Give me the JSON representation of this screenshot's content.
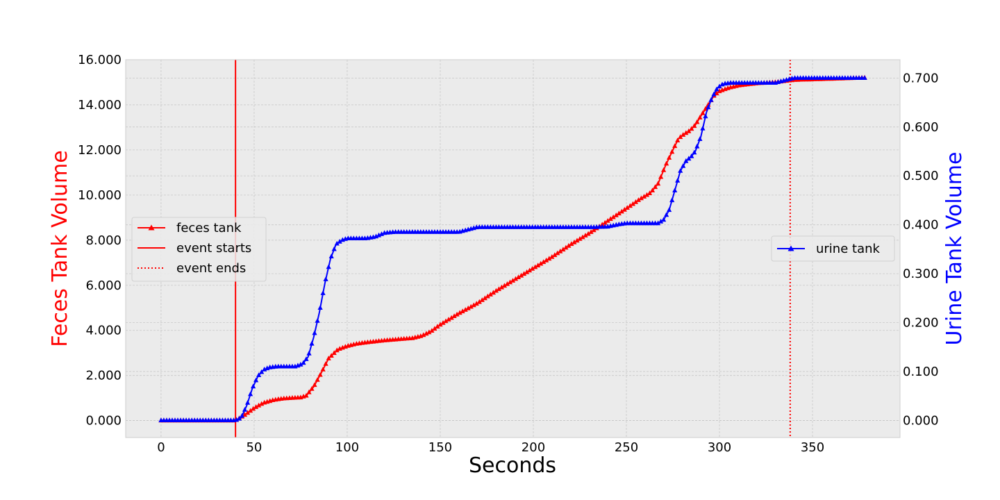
{
  "chart_data": {
    "type": "line",
    "xlabel": "Seconds",
    "y_left_label": "Feces Tank Volume",
    "y_right_label": "Urine Tank Volume",
    "xlim": [
      -19,
      397
    ],
    "y_left_lim": [
      -0.75,
      16.0
    ],
    "y_right_lim": [
      -0.035,
      0.7375
    ],
    "x_ticks": [
      0,
      50,
      100,
      150,
      200,
      250,
      300,
      350
    ],
    "x_tick_labels": [
      "0",
      "50",
      "100",
      "150",
      "200",
      "250",
      "300",
      "350"
    ],
    "y_left_ticks": [
      0,
      2,
      4,
      6,
      8,
      10,
      12,
      14,
      16
    ],
    "y_left_tick_labels": [
      "0.000",
      "2.000",
      "4.000",
      "6.000",
      "8.000",
      "10.000",
      "12.000",
      "14.000",
      "16.000"
    ],
    "y_right_ticks": [
      0,
      0.1,
      0.2,
      0.3,
      0.4,
      0.5,
      0.6,
      0.7
    ],
    "y_right_tick_labels": [
      "0.000",
      "0.100",
      "0.200",
      "0.300",
      "0.400",
      "0.500",
      "0.600",
      "0.700"
    ],
    "grid": true,
    "marker_step": 1.5,
    "series": [
      {
        "name": "feces tank",
        "axis": "left",
        "color": "#ff0000",
        "marker": "triangle",
        "x_end": 378,
        "points": [
          [
            0,
            0
          ],
          [
            40,
            0
          ],
          [
            45,
            0.25
          ],
          [
            50,
            0.55
          ],
          [
            55,
            0.78
          ],
          [
            60,
            0.9
          ],
          [
            65,
            0.97
          ],
          [
            70,
            1.0
          ],
          [
            75,
            1.02
          ],
          [
            78,
            1.1
          ],
          [
            82,
            1.5
          ],
          [
            86,
            2.1
          ],
          [
            90,
            2.75
          ],
          [
            95,
            3.15
          ],
          [
            100,
            3.3
          ],
          [
            105,
            3.4
          ],
          [
            110,
            3.46
          ],
          [
            120,
            3.55
          ],
          [
            130,
            3.62
          ],
          [
            135,
            3.65
          ],
          [
            140,
            3.75
          ],
          [
            145,
            3.95
          ],
          [
            150,
            4.25
          ],
          [
            160,
            4.75
          ],
          [
            170,
            5.2
          ],
          [
            180,
            5.75
          ],
          [
            190,
            6.25
          ],
          [
            200,
            6.75
          ],
          [
            210,
            7.25
          ],
          [
            220,
            7.8
          ],
          [
            230,
            8.3
          ],
          [
            240,
            8.85
          ],
          [
            250,
            9.4
          ],
          [
            257,
            9.8
          ],
          [
            263,
            10.1
          ],
          [
            267,
            10.5
          ],
          [
            271,
            11.3
          ],
          [
            275,
            12.0
          ],
          [
            278,
            12.5
          ],
          [
            281,
            12.7
          ],
          [
            284,
            12.85
          ],
          [
            287,
            13.1
          ],
          [
            290,
            13.5
          ],
          [
            294,
            14.0
          ],
          [
            297,
            14.4
          ],
          [
            300,
            14.6
          ],
          [
            305,
            14.75
          ],
          [
            310,
            14.85
          ],
          [
            320,
            14.95
          ],
          [
            330,
            15.0
          ],
          [
            340,
            15.1
          ],
          [
            360,
            15.15
          ],
          [
            378,
            15.2
          ]
        ]
      },
      {
        "name": "urine tank",
        "axis": "right",
        "color": "#0000ff",
        "marker": "triangle",
        "x_end": 378,
        "points": [
          [
            0,
            0
          ],
          [
            40,
            0
          ],
          [
            43,
            0.005
          ],
          [
            46,
            0.03
          ],
          [
            49,
            0.065
          ],
          [
            52,
            0.09
          ],
          [
            55,
            0.103
          ],
          [
            58,
            0.108
          ],
          [
            62,
            0.11
          ],
          [
            72,
            0.11
          ],
          [
            76,
            0.115
          ],
          [
            79,
            0.13
          ],
          [
            82,
            0.17
          ],
          [
            85,
            0.22
          ],
          [
            88,
            0.28
          ],
          [
            91,
            0.33
          ],
          [
            94,
            0.36
          ],
          [
            97,
            0.368
          ],
          [
            100,
            0.372
          ],
          [
            110,
            0.372
          ],
          [
            115,
            0.375
          ],
          [
            120,
            0.383
          ],
          [
            125,
            0.385
          ],
          [
            160,
            0.385
          ],
          [
            165,
            0.39
          ],
          [
            170,
            0.395
          ],
          [
            175,
            0.395
          ],
          [
            233,
            0.395
          ],
          [
            240,
            0.396
          ],
          [
            245,
            0.4
          ],
          [
            250,
            0.403
          ],
          [
            267,
            0.403
          ],
          [
            270,
            0.41
          ],
          [
            273,
            0.43
          ],
          [
            276,
            0.47
          ],
          [
            279,
            0.51
          ],
          [
            282,
            0.53
          ],
          [
            285,
            0.54
          ],
          [
            287,
            0.55
          ],
          [
            290,
            0.58
          ],
          [
            293,
            0.63
          ],
          [
            296,
            0.66
          ],
          [
            299,
            0.68
          ],
          [
            302,
            0.688
          ],
          [
            306,
            0.69
          ],
          [
            330,
            0.69
          ],
          [
            335,
            0.695
          ],
          [
            340,
            0.7
          ],
          [
            378,
            0.7
          ]
        ]
      }
    ],
    "vlines": [
      {
        "name": "event starts",
        "x": 40,
        "color": "#ff0000",
        "style": "solid"
      },
      {
        "name": "event ends",
        "x": 338,
        "color": "#ff0000",
        "style": "dotted"
      }
    ],
    "legend_left": {
      "placement": "center-left",
      "entries": [
        "feces tank",
        "event starts",
        "event ends"
      ]
    },
    "legend_right": {
      "placement": "center-right",
      "entries": [
        "urine tank"
      ]
    }
  }
}
